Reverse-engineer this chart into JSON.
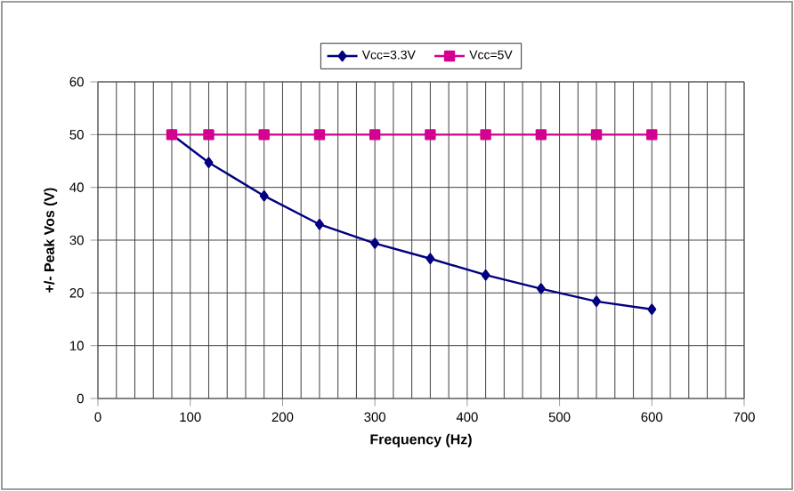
{
  "chart_data": {
    "type": "line",
    "xlabel": "Frequency (Hz)",
    "ylabel": "+/- Peak Vos (V)",
    "x": [
      80,
      120,
      180,
      240,
      300,
      360,
      420,
      480,
      540,
      600
    ],
    "series": [
      {
        "name": "Vcc=3.3V",
        "color": "#000080",
        "marker": "diamond",
        "values": [
          50,
          44.7,
          38.4,
          33.0,
          29.4,
          26.5,
          23.4,
          20.8,
          18.4,
          16.9
        ]
      },
      {
        "name": "Vcc=5V",
        "color": "#d4008f",
        "marker": "square",
        "values": [
          50,
          50,
          50,
          50,
          50,
          50,
          50,
          50,
          50,
          50
        ]
      }
    ],
    "xlim": [
      0,
      700
    ],
    "xticks": [
      0,
      100,
      200,
      300,
      400,
      500,
      600,
      700
    ],
    "ylim": [
      0,
      60
    ],
    "yticks": [
      0,
      10,
      20,
      30,
      40,
      50,
      60
    ],
    "grid": true,
    "legend": "top",
    "line_style": "solid"
  }
}
